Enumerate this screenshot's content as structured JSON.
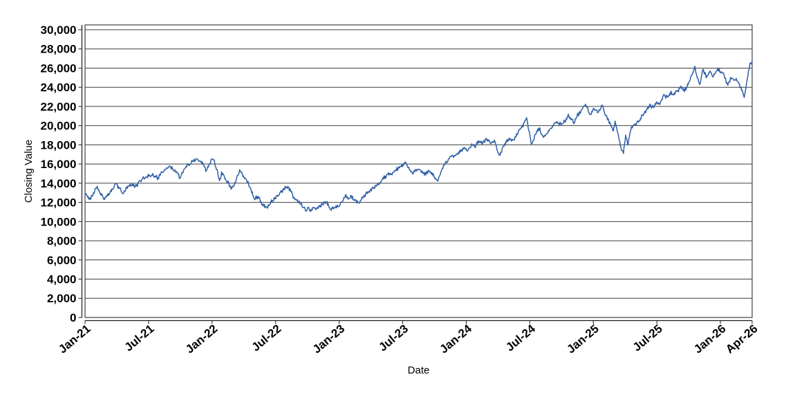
{
  "chart_data": {
    "type": "line",
    "title": "",
    "xlabel": "Date",
    "ylabel": "Closing Value",
    "legend": "none",
    "grid": "horizontal-only",
    "ylim": [
      0,
      30000
    ],
    "y_tick_step": 2000,
    "y_tick_labels": [
      "0",
      "2,000",
      "4,000",
      "6,000",
      "8,000",
      "10,000",
      "12,000",
      "14,000",
      "16,000",
      "18,000",
      "20,000",
      "22,000",
      "24,000",
      "26,000",
      "28,000",
      "30,000"
    ],
    "x_tick_labels": [
      "Jan-21",
      "Jul-21",
      "Jan-22",
      "Jul-22",
      "Jan-23",
      "Jul-23",
      "Jan-24",
      "Jul-24",
      "Jan-25",
      "Jul-25",
      "Jan-26",
      "Apr-26"
    ],
    "x_tick_months": [
      0,
      6,
      12,
      18,
      24,
      30,
      36,
      42,
      48,
      54,
      60,
      63
    ],
    "x_range_months": [
      0,
      63
    ],
    "series": [
      {
        "name": "Closing Value",
        "color": "#2f5fa6",
        "anchors_month_value": [
          [
            0,
            12900
          ],
          [
            0.4,
            12430
          ],
          [
            1.1,
            13520
          ],
          [
            1.8,
            12360
          ],
          [
            2.4,
            13080
          ],
          [
            2.9,
            13900
          ],
          [
            3.5,
            12980
          ],
          [
            4.2,
            13750
          ],
          [
            4.7,
            13600
          ],
          [
            5.35,
            14480
          ],
          [
            6.0,
            14730
          ],
          [
            6.66,
            14850
          ],
          [
            6.9,
            14480
          ],
          [
            7.5,
            15450
          ],
          [
            8.0,
            15670
          ],
          [
            8.75,
            15090
          ],
          [
            8.95,
            14590
          ],
          [
            9.6,
            15810
          ],
          [
            10.1,
            16300
          ],
          [
            10.77,
            16500
          ],
          [
            11.23,
            15960
          ],
          [
            11.42,
            15350
          ],
          [
            11.88,
            16450
          ],
          [
            12.14,
            16520
          ],
          [
            12.73,
            14230
          ],
          [
            12.9,
            15060
          ],
          [
            13.25,
            14350
          ],
          [
            13.84,
            13450
          ],
          [
            14.62,
            15230
          ],
          [
            15.27,
            14150
          ],
          [
            15.6,
            13500
          ],
          [
            16.0,
            12250
          ],
          [
            16.35,
            12480
          ],
          [
            16.7,
            11900
          ],
          [
            17.0,
            11500
          ],
          [
            17.23,
            11300
          ],
          [
            17.55,
            12180
          ],
          [
            18.0,
            12500
          ],
          [
            18.4,
            12900
          ],
          [
            19.06,
            13790
          ],
          [
            19.85,
            12280
          ],
          [
            20.37,
            11840
          ],
          [
            20.7,
            11200
          ],
          [
            20.9,
            11050
          ],
          [
            21.05,
            11350
          ],
          [
            21.3,
            10870
          ],
          [
            21.54,
            11600
          ],
          [
            21.87,
            11350
          ],
          [
            22.33,
            11700
          ],
          [
            22.78,
            11970
          ],
          [
            23.18,
            11100
          ],
          [
            23.6,
            11450
          ],
          [
            24.0,
            11700
          ],
          [
            24.35,
            12300
          ],
          [
            24.6,
            12700
          ],
          [
            24.85,
            12350
          ],
          [
            25.1,
            12600
          ],
          [
            25.6,
            12020
          ],
          [
            26.0,
            12250
          ],
          [
            26.56,
            12870
          ],
          [
            27.2,
            13530
          ],
          [
            27.9,
            13970
          ],
          [
            28.3,
            14500
          ],
          [
            29.5,
            15570
          ],
          [
            30.3,
            15930
          ],
          [
            30.9,
            14970
          ],
          [
            31.66,
            15500
          ],
          [
            32.1,
            15020
          ],
          [
            32.5,
            15300
          ],
          [
            33.3,
            14200
          ],
          [
            33.9,
            15800
          ],
          [
            34.4,
            16530
          ],
          [
            35.25,
            17110
          ],
          [
            35.83,
            17620
          ],
          [
            36.16,
            17260
          ],
          [
            36.6,
            18120
          ],
          [
            36.85,
            17830
          ],
          [
            37.15,
            18340
          ],
          [
            37.5,
            18200
          ],
          [
            38.0,
            18560
          ],
          [
            38.32,
            18100
          ],
          [
            38.65,
            18480
          ],
          [
            38.97,
            17250
          ],
          [
            39.17,
            16900
          ],
          [
            39.5,
            17830
          ],
          [
            40.1,
            18650
          ],
          [
            40.4,
            18400
          ],
          [
            40.9,
            19280
          ],
          [
            41.35,
            19930
          ],
          [
            41.72,
            20670
          ],
          [
            42.17,
            17830
          ],
          [
            42.5,
            19200
          ],
          [
            42.89,
            19930
          ],
          [
            43.35,
            18840
          ],
          [
            43.7,
            19300
          ],
          [
            44.0,
            19640
          ],
          [
            44.52,
            20290
          ],
          [
            45.04,
            20140
          ],
          [
            45.7,
            21010
          ],
          [
            46.15,
            20300
          ],
          [
            46.68,
            21370
          ],
          [
            47.33,
            22240
          ],
          [
            47.65,
            21080
          ],
          [
            48.11,
            21660
          ],
          [
            48.44,
            21400
          ],
          [
            48.83,
            22200
          ],
          [
            49.3,
            20800
          ],
          [
            49.88,
            19420
          ],
          [
            50.07,
            20400
          ],
          [
            50.5,
            18170
          ],
          [
            50.68,
            17450
          ],
          [
            50.85,
            17200
          ],
          [
            51.05,
            18920
          ],
          [
            51.25,
            17850
          ],
          [
            51.57,
            19780
          ],
          [
            52.16,
            20360
          ],
          [
            52.68,
            21080
          ],
          [
            53.0,
            21500
          ],
          [
            53.34,
            22090
          ],
          [
            53.7,
            21900
          ],
          [
            53.99,
            22530
          ],
          [
            54.31,
            22250
          ],
          [
            54.64,
            23250
          ],
          [
            54.97,
            22800
          ],
          [
            55.29,
            23390
          ],
          [
            55.6,
            23300
          ],
          [
            55.95,
            23610
          ],
          [
            56.27,
            24120
          ],
          [
            56.6,
            23650
          ],
          [
            56.9,
            24300
          ],
          [
            57.25,
            25080
          ],
          [
            57.6,
            26100
          ],
          [
            58.04,
            24150
          ],
          [
            58.36,
            25800
          ],
          [
            58.69,
            24980
          ],
          [
            59.02,
            25700
          ],
          [
            59.34,
            25100
          ],
          [
            59.67,
            25800
          ],
          [
            59.99,
            25560
          ],
          [
            60.32,
            25200
          ],
          [
            60.65,
            24480
          ],
          [
            60.97,
            24980
          ],
          [
            61.3,
            24850
          ],
          [
            61.63,
            24600
          ],
          [
            61.95,
            23980
          ],
          [
            62.28,
            23030
          ],
          [
            62.48,
            24480
          ],
          [
            62.67,
            25920
          ],
          [
            62.87,
            26640
          ],
          [
            63,
            26700
          ]
        ]
      }
    ],
    "render_hints": {
      "daily_noise": {
        "seed": 20210104,
        "high_freq_amp": 170,
        "walk_amp": 150,
        "walk_decay": 0.85,
        "points_per_month": 20
      }
    }
  },
  "styles": {
    "background": "#ffffff",
    "grid_color": "#3f3f3f",
    "frame_color": "#3f3f3f",
    "axis_color": "#1a1a1a",
    "text_color": "#000000",
    "series_color": "#2f5fa6"
  }
}
